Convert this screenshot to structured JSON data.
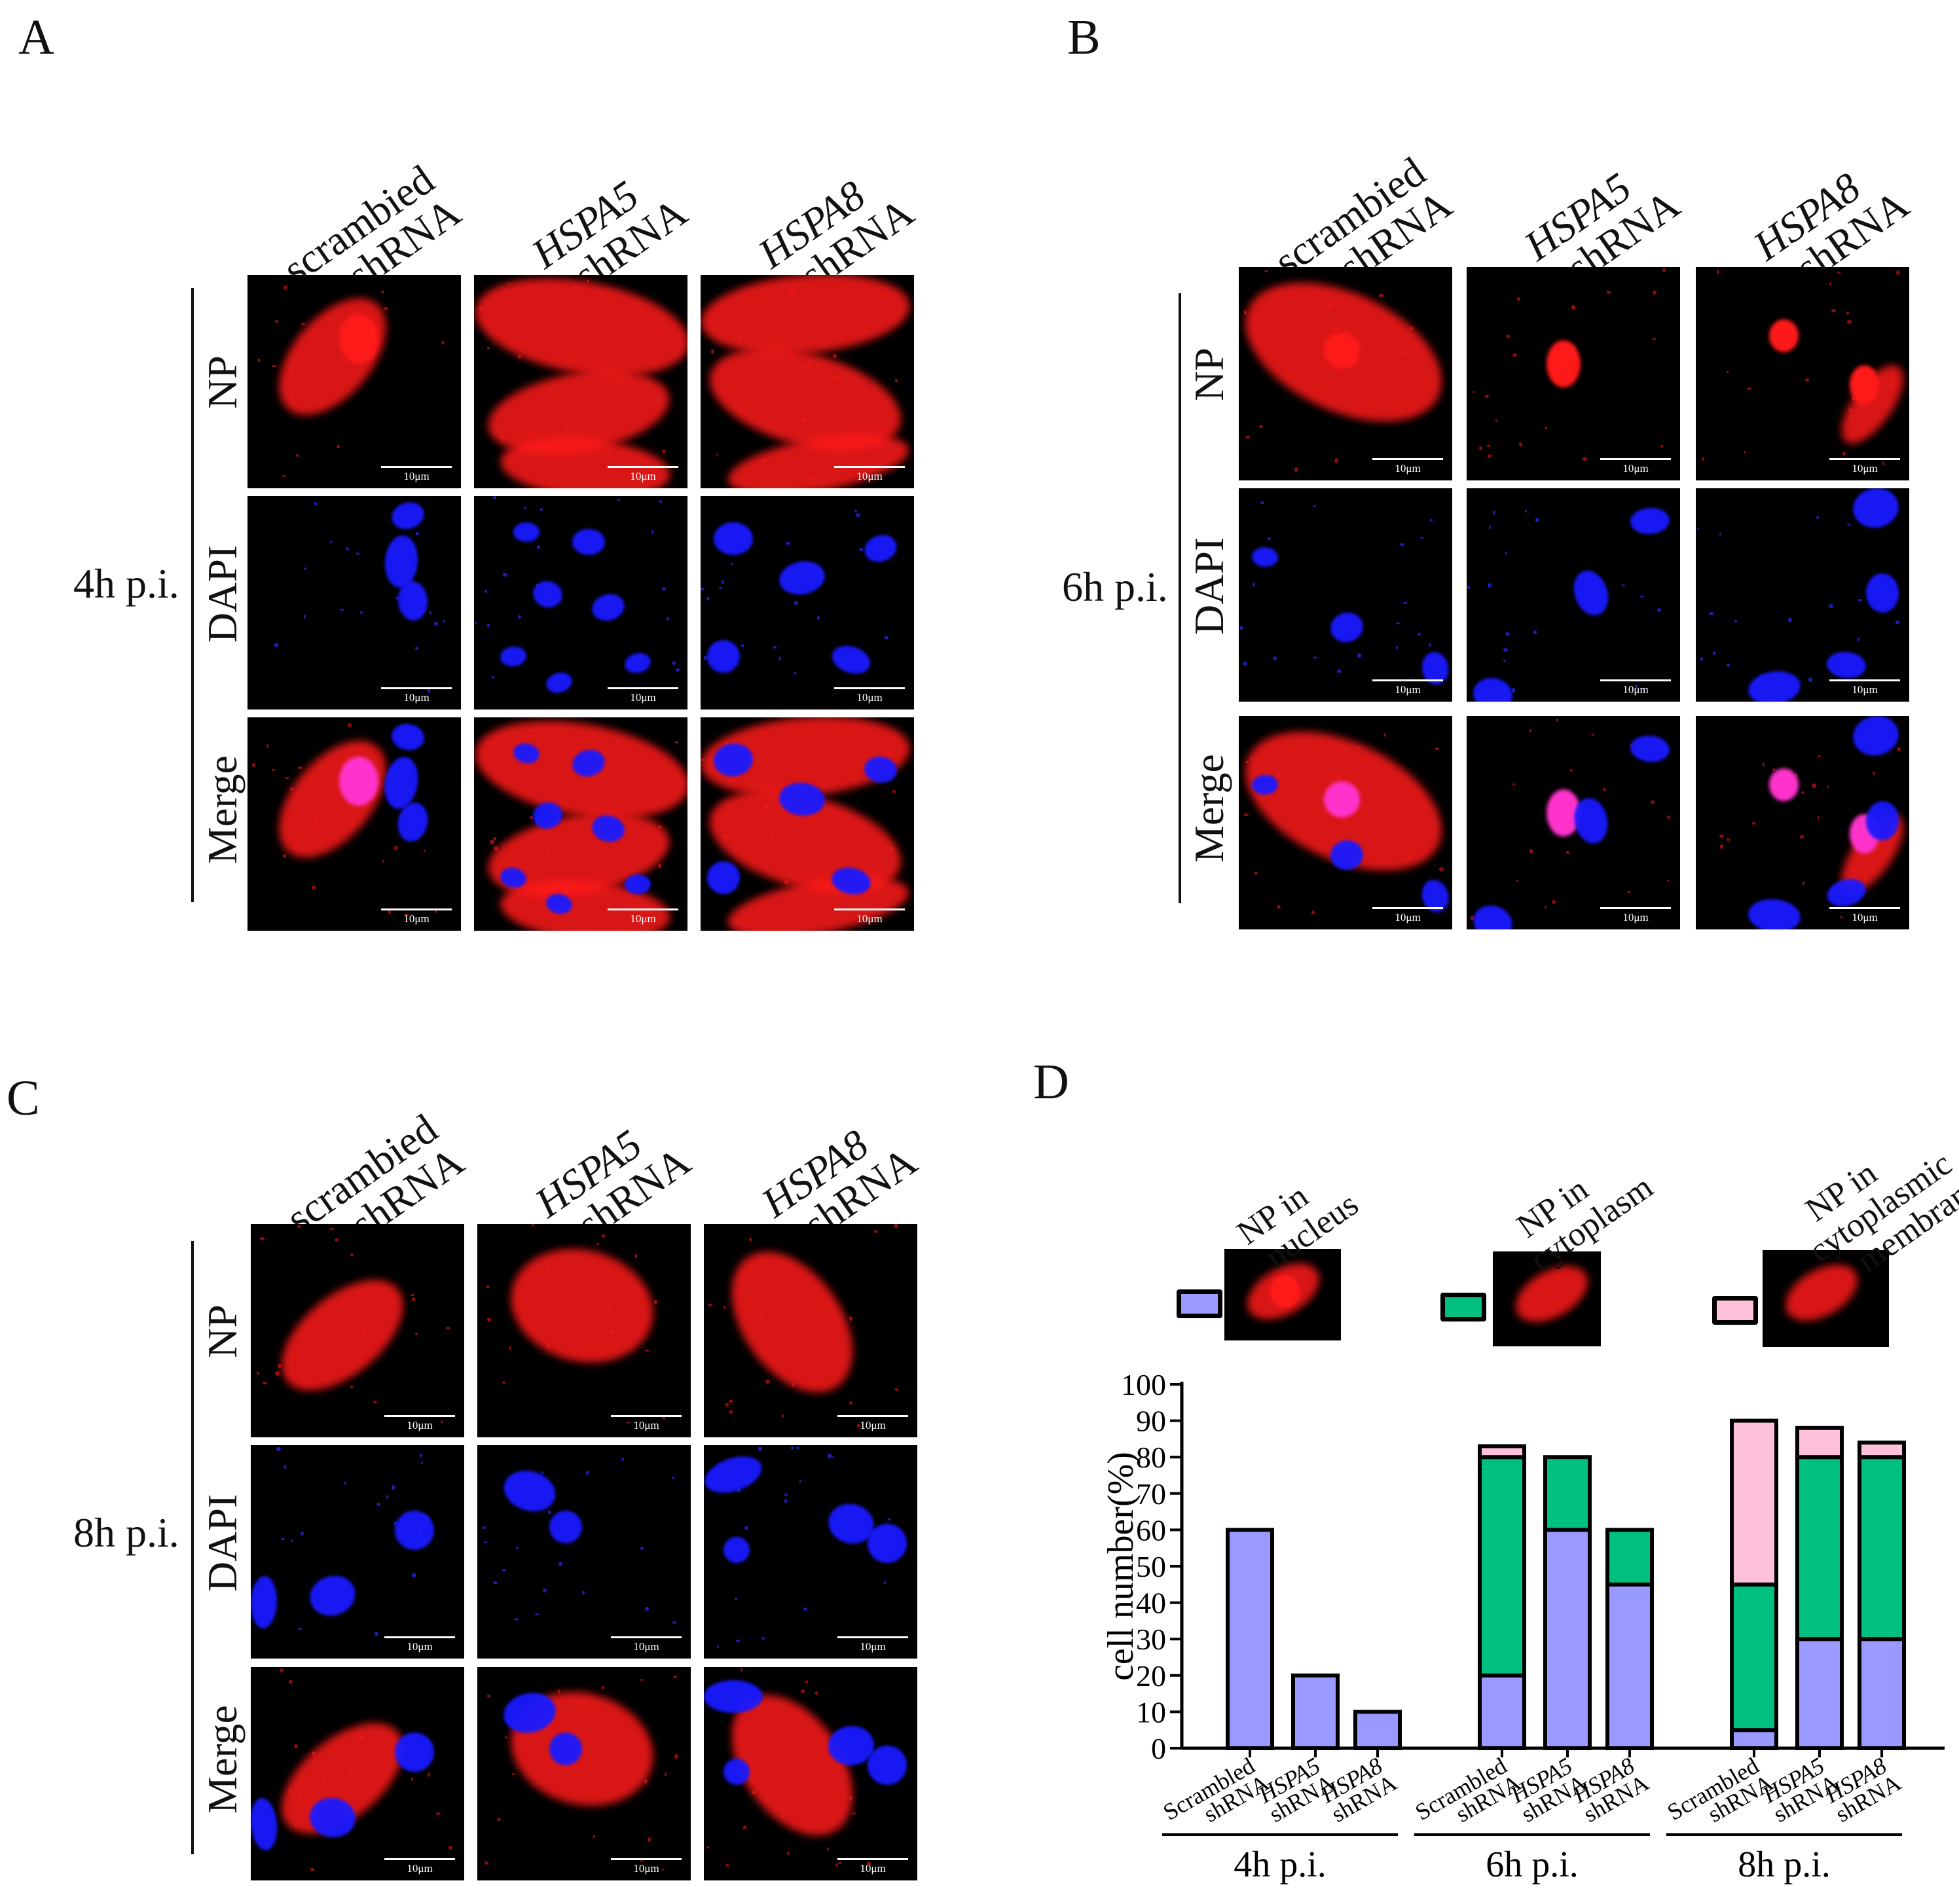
{
  "panels": {
    "A": {
      "letter": "A",
      "time_label": "4h p.i.",
      "columns": [
        {
          "line1": "scrambied",
          "line2": "shRNA",
          "italic": false
        },
        {
          "line1": "HSPA5",
          "line2": "shRNA",
          "italic": true
        },
        {
          "line1": "HSPA8",
          "line2": "shRNA",
          "italic": true
        }
      ],
      "rows": [
        "NP",
        "DAPI",
        "Merge"
      ],
      "scale_label": "10μm"
    },
    "B": {
      "letter": "B",
      "time_label": "6h p.i.",
      "columns": [
        {
          "line1": "scrambied",
          "line2": "shRNA",
          "italic": false
        },
        {
          "line1": "HSPA5",
          "line2": "shRNA",
          "italic": true
        },
        {
          "line1": "HSPA8",
          "line2": "shRNA",
          "italic": true
        }
      ],
      "rows": [
        "NP",
        "DAPI",
        "Merge"
      ],
      "scale_label": "10μm"
    },
    "C": {
      "letter": "C",
      "time_label": "8h p.i.",
      "columns": [
        {
          "line1": "scrambied",
          "line2": "shRNA",
          "italic": false
        },
        {
          "line1": "HSPA5",
          "line2": "shRNA",
          "italic": true
        },
        {
          "line1": "HSPA8",
          "line2": "shRNA",
          "italic": true
        }
      ],
      "rows": [
        "NP",
        "DAPI",
        "Merge"
      ],
      "scale_label": "10μm"
    },
    "D": {
      "letter": "D"
    }
  },
  "colors": {
    "nucleus": "#9999ff",
    "cytoplasm": "#00c080",
    "membrane": "#ffc0dc",
    "np_red": "#ff1a1a",
    "dapi_blue": "#1a1aff",
    "merge_magenta": "#ff33cc"
  },
  "chart_data": {
    "type": "bar",
    "stacked": true,
    "ylabel": "cell number(%)",
    "ylim": [
      0,
      100
    ],
    "yticks": [
      0,
      10,
      20,
      30,
      40,
      50,
      60,
      70,
      80,
      90,
      100
    ],
    "legend": [
      {
        "key": "nucleus",
        "words": [
          "NP in",
          "nucleus"
        ]
      },
      {
        "key": "cytoplasm",
        "words": [
          "NP in",
          "cytoplasm"
        ]
      },
      {
        "key": "membrane",
        "words": [
          "NP in",
          "cytoplasmic",
          "membrane"
        ]
      }
    ],
    "groups": [
      {
        "label": "4h p.i.",
        "bars": [
          {
            "line1": "Scrambled",
            "line2": "shRNA",
            "italic": false,
            "nucleus": 60,
            "cytoplasm": 0,
            "membrane": 0
          },
          {
            "line1": "HSPA5",
            "line2": "shRNA",
            "italic": true,
            "nucleus": 20,
            "cytoplasm": 0,
            "membrane": 0
          },
          {
            "line1": "HSPA8",
            "line2": "shRNA",
            "italic": true,
            "nucleus": 10,
            "cytoplasm": 0,
            "membrane": 0
          }
        ]
      },
      {
        "label": "6h p.i.",
        "bars": [
          {
            "line1": "Scrambled",
            "line2": "shRNA",
            "italic": false,
            "nucleus": 20,
            "cytoplasm": 60,
            "membrane": 3
          },
          {
            "line1": "HSPA5",
            "line2": "shRNA",
            "italic": true,
            "nucleus": 60,
            "cytoplasm": 20,
            "membrane": 0
          },
          {
            "line1": "HSPA8",
            "line2": "shRNA",
            "italic": true,
            "nucleus": 45,
            "cytoplasm": 15,
            "membrane": 0
          }
        ]
      },
      {
        "label": "8h p.i.",
        "bars": [
          {
            "line1": "Scrambled",
            "line2": "shRNA",
            "italic": false,
            "nucleus": 5,
            "cytoplasm": 40,
            "membrane": 45
          },
          {
            "line1": "HSPA5",
            "line2": "shRNA",
            "italic": true,
            "nucleus": 30,
            "cytoplasm": 50,
            "membrane": 8
          },
          {
            "line1": "HSPA8",
            "line2": "shRNA",
            "italic": true,
            "nucleus": 30,
            "cytoplasm": 50,
            "membrane": 4
          }
        ]
      }
    ]
  }
}
